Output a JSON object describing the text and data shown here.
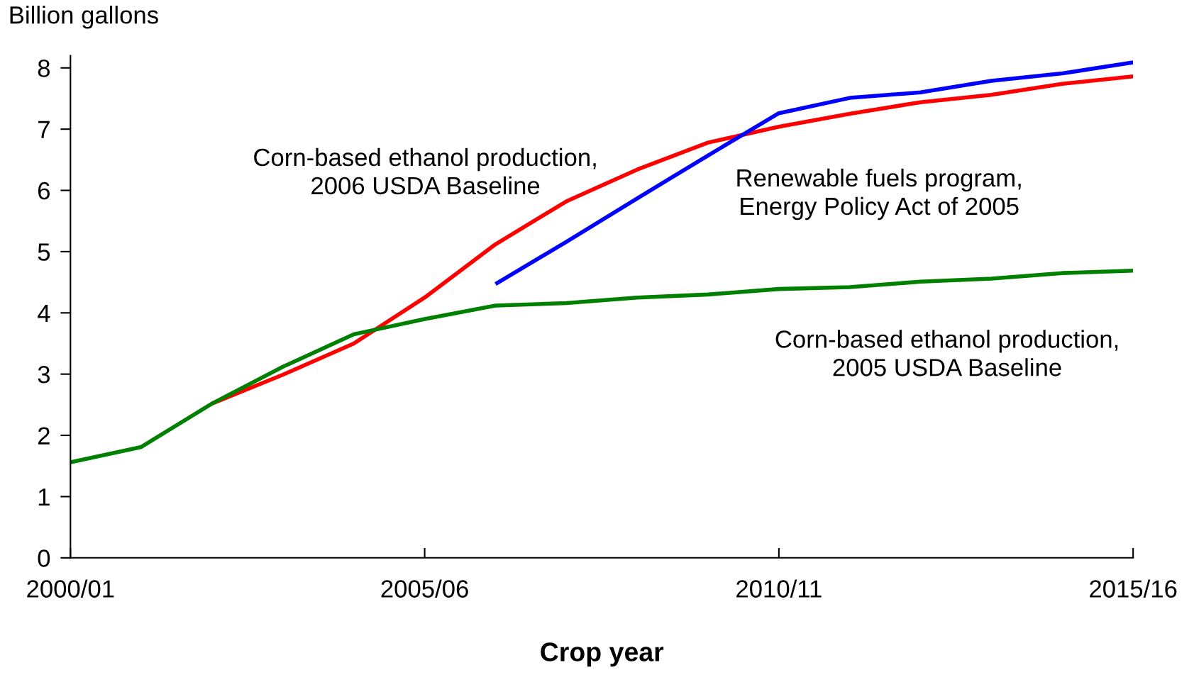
{
  "chart_data": {
    "type": "line",
    "ylabel": "Billion gallons",
    "xlabel": "Crop year",
    "categories": [
      "2000/01",
      null,
      null,
      null,
      null,
      "2005/06",
      null,
      null,
      null,
      null,
      "2010/11",
      null,
      null,
      null,
      null,
      "2015/16"
    ],
    "series": [
      {
        "name": "Corn-based ethanol production,\n2006 USDA Baseline",
        "color": "#ff0000",
        "values": [
          null,
          null,
          2.52,
          2.99,
          3.5,
          4.25,
          5.12,
          5.82,
          6.34,
          6.78,
          7.04,
          7.25,
          7.44,
          7.56,
          7.74,
          7.86
        ]
      },
      {
        "name": "Renewable fuels program,\nEnergy Policy Act of 2005",
        "color": "#0000ff",
        "values": [
          null,
          null,
          null,
          null,
          null,
          null,
          4.47,
          5.16,
          5.87,
          6.57,
          7.26,
          7.51,
          7.6,
          7.79,
          7.91,
          8.09
        ]
      },
      {
        "name": "Corn-based ethanol production,\n2005 USDA Baseline",
        "color": "#008000",
        "values": [
          1.56,
          1.81,
          2.52,
          3.12,
          3.65,
          3.9,
          4.12,
          4.16,
          4.25,
          4.3,
          4.39,
          4.42,
          4.51,
          4.56,
          4.65,
          4.69
        ]
      }
    ],
    "ylim": [
      0,
      8.2
    ],
    "yticks": [
      0,
      1,
      2,
      3,
      4,
      5,
      6,
      7,
      8
    ],
    "grid": false,
    "legend": false
  }
}
